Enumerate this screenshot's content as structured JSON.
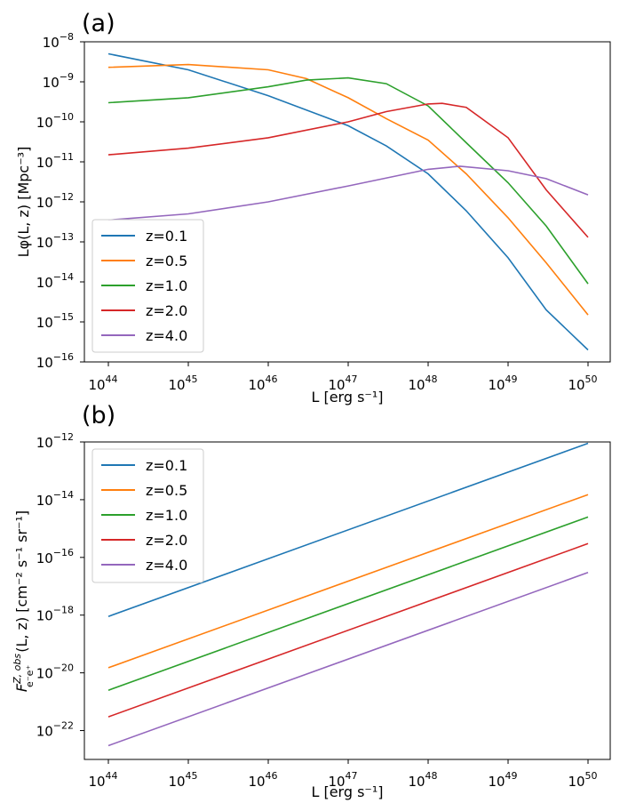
{
  "chart_data": [
    {
      "type": "line",
      "panel_label": "(a)",
      "xlabel": "L [erg s⁻¹]",
      "ylabel": "Lφ(L, z) [Mpc⁻³]",
      "x_scale": "log",
      "y_scale": "log",
      "xlim": [
        1e+44,
        1e+50
      ],
      "ylim": [
        1e-16,
        1e-08
      ],
      "x_ticks": [
        {
          "base": "10",
          "exp": "44"
        },
        {
          "base": "10",
          "exp": "45"
        },
        {
          "base": "10",
          "exp": "46"
        },
        {
          "base": "10",
          "exp": "47"
        },
        {
          "base": "10",
          "exp": "48"
        },
        {
          "base": "10",
          "exp": "49"
        },
        {
          "base": "10",
          "exp": "50"
        }
      ],
      "y_ticks": [
        {
          "base": "10",
          "exp": "−16"
        },
        {
          "base": "10",
          "exp": "−15"
        },
        {
          "base": "10",
          "exp": "−14"
        },
        {
          "base": "10",
          "exp": "−13"
        },
        {
          "base": "10",
          "exp": "−12"
        },
        {
          "base": "10",
          "exp": "−11"
        },
        {
          "base": "10",
          "exp": "−10"
        },
        {
          "base": "10",
          "exp": "−9"
        },
        {
          "base": "10",
          "exp": "−8"
        }
      ],
      "legend_position": "lower-left",
      "grid": false,
      "series": [
        {
          "name": "z=0.1",
          "color": "#1f77b4",
          "x": [
            1e+44,
            1e+45,
            1e+46,
            1e+47,
            3e+47,
            1e+48,
            3e+48,
            1e+49,
            3e+49,
            1e+50
          ],
          "y": [
            5e-09,
            2e-09,
            4.5e-10,
            8e-11,
            2.5e-11,
            5e-12,
            6e-13,
            4e-14,
            2e-15,
            2e-16
          ]
        },
        {
          "name": "z=0.5",
          "color": "#ff7f0e",
          "x": [
            1e+44,
            1e+45,
            1e+46,
            3e+46,
            1e+47,
            3e+47,
            1e+48,
            3e+48,
            1e+49,
            3e+49,
            1e+50
          ],
          "y": [
            2.3e-09,
            2.7e-09,
            2e-09,
            1.2e-09,
            4e-10,
            1.2e-10,
            3.5e-11,
            5e-12,
            4e-13,
            3e-14,
            1.5e-15
          ]
        },
        {
          "name": "z=1.0",
          "color": "#2ca02c",
          "x": [
            1e+44,
            1e+45,
            1e+46,
            3e+46,
            1e+47,
            3e+47,
            1e+48,
            3e+48,
            1e+49,
            3e+49,
            1e+50
          ],
          "y": [
            3e-10,
            4e-10,
            7.5e-10,
            1.1e-09,
            1.25e-09,
            9e-10,
            2.5e-10,
            3e-11,
            3e-12,
            2.5e-13,
            9e-15
          ]
        },
        {
          "name": "z=2.0",
          "color": "#d62728",
          "x": [
            1e+44,
            1e+45,
            1e+46,
            1e+47,
            3e+47,
            1e+48,
            1.5e+48,
            3e+48,
            1e+49,
            3e+49,
            1e+50
          ],
          "y": [
            1.5e-11,
            2.2e-11,
            4e-11,
            1e-10,
            1.8e-10,
            2.8e-10,
            2.9e-10,
            2.3e-10,
            4e-11,
            2e-12,
            1.3e-13
          ]
        },
        {
          "name": "z=4.0",
          "color": "#9467bd",
          "x": [
            1e+44,
            1e+45,
            1e+46,
            1e+47,
            1e+48,
            2.5e+48,
            1e+49,
            3e+49,
            1e+50
          ],
          "y": [
            3.5e-13,
            5e-13,
            1e-12,
            2.5e-12,
            6.5e-12,
            7.8e-12,
            6e-12,
            3.8e-12,
            1.5e-12
          ]
        }
      ]
    },
    {
      "type": "line",
      "panel_label": "(b)",
      "xlabel": "L [erg s⁻¹]",
      "ylabel": "F^{Z, obs}_{e⁻e⁺}(L, z) [cm⁻² s⁻¹ sr⁻¹]",
      "ylabel_parts": {
        "lead": "F",
        "sup": "Z, obs",
        "sub": "e⁻e⁺",
        "rest": "(L, z) [cm⁻² s⁻¹ sr⁻¹]"
      },
      "x_scale": "log",
      "y_scale": "log",
      "xlim": [
        1e+44,
        1e+50
      ],
      "ylim": [
        1e-23,
        1e-12
      ],
      "x_ticks": [
        {
          "base": "10",
          "exp": "44"
        },
        {
          "base": "10",
          "exp": "45"
        },
        {
          "base": "10",
          "exp": "46"
        },
        {
          "base": "10",
          "exp": "47"
        },
        {
          "base": "10",
          "exp": "48"
        },
        {
          "base": "10",
          "exp": "49"
        },
        {
          "base": "10",
          "exp": "50"
        }
      ],
      "y_ticks": [
        {
          "value": -22,
          "base": "10",
          "exp": "−22"
        },
        {
          "value": -20,
          "base": "10",
          "exp": "−20"
        },
        {
          "value": -18,
          "base": "10",
          "exp": "−18"
        },
        {
          "value": -16,
          "base": "10",
          "exp": "−16"
        },
        {
          "value": -14,
          "base": "10",
          "exp": "−14"
        },
        {
          "value": -12,
          "base": "10",
          "exp": "−12"
        }
      ],
      "legend_position": "upper-left",
      "grid": false,
      "series": [
        {
          "name": "z=0.1",
          "color": "#1f77b4",
          "x": [
            1e+44,
            1e+50
          ],
          "y": [
            9e-19,
            9e-13
          ]
        },
        {
          "name": "z=0.5",
          "color": "#ff7f0e",
          "x": [
            1e+44,
            1e+50
          ],
          "y": [
            1.5e-20,
            1.5e-14
          ]
        },
        {
          "name": "z=1.0",
          "color": "#2ca02c",
          "x": [
            1e+44,
            1e+50
          ],
          "y": [
            2.5e-21,
            2.5e-15
          ]
        },
        {
          "name": "z=2.0",
          "color": "#d62728",
          "x": [
            1e+44,
            1e+50
          ],
          "y": [
            3e-22,
            3e-16
          ]
        },
        {
          "name": "z=4.0",
          "color": "#9467bd",
          "x": [
            1e+44,
            1e+50
          ],
          "y": [
            3e-23,
            3e-17
          ]
        }
      ]
    }
  ]
}
